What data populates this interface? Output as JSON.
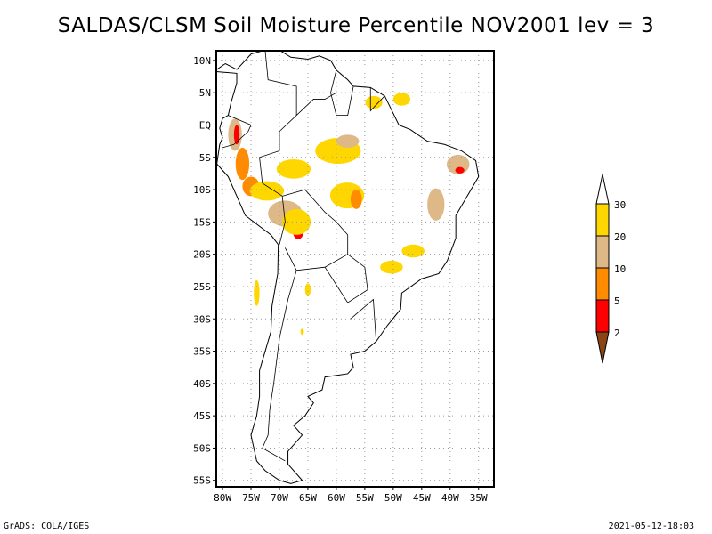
{
  "title": "SALDAS/CLSM Soil Moisture Percentile NOV2001 lev = 3",
  "footer_left": "GrADS: COLA/IGES",
  "footer_right": "2021-05-12-18:03",
  "map": {
    "lon_range": [
      -81.1,
      -32.3
    ],
    "lat_range": [
      -56,
      11.5
    ],
    "lat_ticks": [
      {
        "v": 10,
        "label": "10N"
      },
      {
        "v": 5,
        "label": "5N"
      },
      {
        "v": 0,
        "label": "EQ"
      },
      {
        "v": -5,
        "label": "5S"
      },
      {
        "v": -10,
        "label": "10S"
      },
      {
        "v": -15,
        "label": "15S"
      },
      {
        "v": -20,
        "label": "20S"
      },
      {
        "v": -25,
        "label": "25S"
      },
      {
        "v": -30,
        "label": "30S"
      },
      {
        "v": -35,
        "label": "35S"
      },
      {
        "v": -40,
        "label": "40S"
      },
      {
        "v": -45,
        "label": "45S"
      },
      {
        "v": -50,
        "label": "50S"
      },
      {
        "v": -55,
        "label": "55S"
      }
    ],
    "lon_ticks": [
      {
        "v": -80,
        "label": "80W"
      },
      {
        "v": -75,
        "label": "75W"
      },
      {
        "v": -70,
        "label": "70W"
      },
      {
        "v": -65,
        "label": "65W"
      },
      {
        "v": -60,
        "label": "60W"
      },
      {
        "v": -55,
        "label": "55W"
      },
      {
        "v": -50,
        "label": "50W"
      },
      {
        "v": -45,
        "label": "45W"
      },
      {
        "v": -40,
        "label": "40W"
      },
      {
        "v": -35,
        "label": "35W"
      }
    ],
    "patches": [
      {
        "lon": -77.8,
        "lat": -1.5,
        "rx": 1.2,
        "ry": 2.5,
        "c": 3
      },
      {
        "lon": -77.5,
        "lat": -1.5,
        "rx": 0.5,
        "ry": 1.5,
        "c": 1
      },
      {
        "lon": -76.5,
        "lat": -6,
        "rx": 1.2,
        "ry": 2.5,
        "c": 2
      },
      {
        "lon": -75,
        "lat": -9.5,
        "rx": 1.5,
        "ry": 1.5,
        "c": 2
      },
      {
        "lon": -72.2,
        "lat": -10.2,
        "rx": 3,
        "ry": 1.5,
        "c": 4
      },
      {
        "lon": -69,
        "lat": -13.7,
        "rx": 3,
        "ry": 2,
        "c": 3
      },
      {
        "lon": -66.7,
        "lat": -16.2,
        "rx": 1,
        "ry": 1.5,
        "c": 1
      },
      {
        "lon": -67,
        "lat": -15,
        "rx": 2.5,
        "ry": 2,
        "c": 4
      },
      {
        "lon": -67.5,
        "lat": -6.8,
        "rx": 3,
        "ry": 1.5,
        "c": 4
      },
      {
        "lon": -59.7,
        "lat": -4,
        "rx": 4,
        "ry": 2,
        "c": 4
      },
      {
        "lon": -58,
        "lat": -2.5,
        "rx": 2,
        "ry": 1,
        "c": 3
      },
      {
        "lon": -58.1,
        "lat": -10.9,
        "rx": 3,
        "ry": 2,
        "c": 4
      },
      {
        "lon": -56.5,
        "lat": -11.5,
        "rx": 1,
        "ry": 1.5,
        "c": 2
      },
      {
        "lon": -53.4,
        "lat": 3.5,
        "rx": 1.5,
        "ry": 1,
        "c": 4
      },
      {
        "lon": -48.5,
        "lat": 4,
        "rx": 1.5,
        "ry": 1,
        "c": 4
      },
      {
        "lon": -38.6,
        "lat": -6.1,
        "rx": 2,
        "ry": 1.5,
        "c": 3
      },
      {
        "lon": -38.3,
        "lat": -7,
        "rx": 0.8,
        "ry": 0.5,
        "c": 1
      },
      {
        "lon": -42.5,
        "lat": -12.3,
        "rx": 1.5,
        "ry": 2.5,
        "c": 3
      },
      {
        "lon": -50.3,
        "lat": -22,
        "rx": 2,
        "ry": 1,
        "c": 4
      },
      {
        "lon": -46.5,
        "lat": -19.5,
        "rx": 2,
        "ry": 1,
        "c": 4
      },
      {
        "lon": -65,
        "lat": -25.5,
        "rx": 0.5,
        "ry": 1,
        "c": 4
      },
      {
        "lon": -74,
        "lat": -26,
        "rx": 0.5,
        "ry": 2,
        "c": 4
      },
      {
        "lon": -66,
        "lat": -32,
        "rx": 0.3,
        "ry": 0.5,
        "c": 4
      }
    ]
  },
  "legend": {
    "labels": [
      "2",
      "5",
      "10",
      "20",
      "30"
    ],
    "colors": {
      "below": "#8B4513",
      "c1": "#FF0000",
      "c2": "#FF8C00",
      "c3": "#DEB887",
      "c4": "#FFD700",
      "above": "#FFFFFF"
    }
  }
}
